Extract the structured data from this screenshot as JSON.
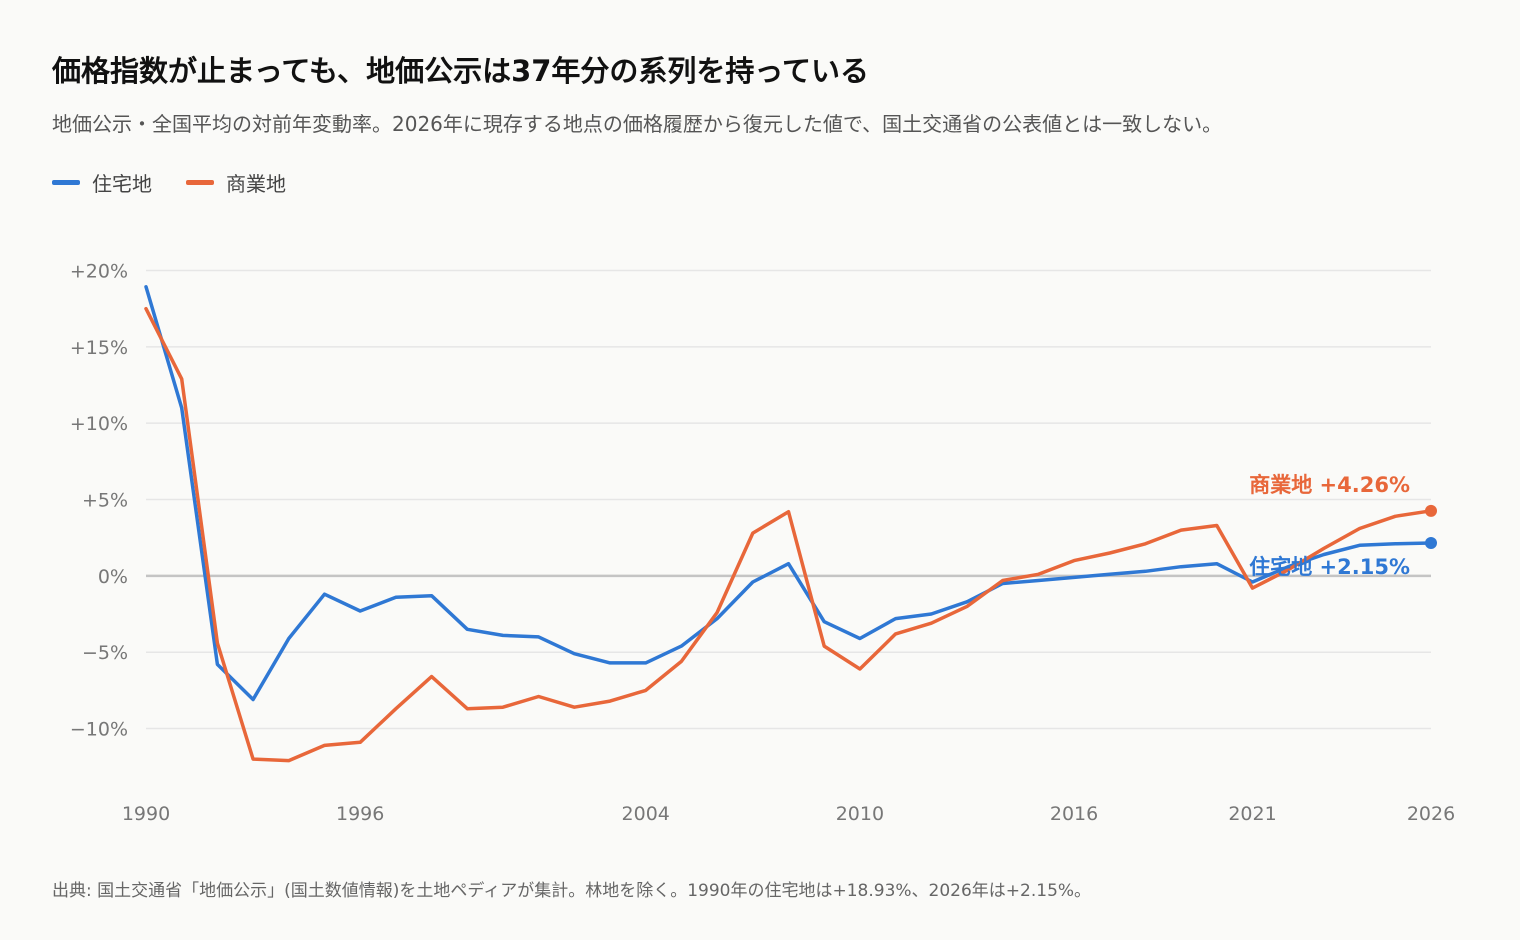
{
  "header": {
    "title": "価格指数が止まっても、地価公示は37年分の系列を持っている",
    "subtitle": "地価公示・全国平均の対前年変動率。2026年に現存する地点の価格履歴から復元した値で、国土交通省の公表値とは一致しない。"
  },
  "legend": [
    {
      "label": "住宅地",
      "color": "#2f78d4"
    },
    {
      "label": "商業地",
      "color": "#e8673a"
    }
  ],
  "source": "出典: 国土交通省「地価公示」(国土数値情報)を土地ペディアが集計。林地を除く。1990年の住宅地は+18.93%、2026年は+2.15%。",
  "chart_data": {
    "type": "line",
    "x": [
      1990,
      1991,
      1992,
      1993,
      1994,
      1995,
      1996,
      1997,
      1998,
      1999,
      2000,
      2001,
      2002,
      2003,
      2004,
      2005,
      2006,
      2007,
      2008,
      2009,
      2010,
      2011,
      2012,
      2013,
      2014,
      2015,
      2016,
      2017,
      2018,
      2019,
      2020,
      2021,
      2022,
      2023,
      2024,
      2025,
      2026
    ],
    "series": [
      {
        "name": "住宅地",
        "color": "#2f78d4",
        "values": [
          18.93,
          11.0,
          -5.8,
          -8.1,
          -4.1,
          -1.2,
          -2.3,
          -1.4,
          -1.3,
          -3.5,
          -3.9,
          -4.0,
          -5.1,
          -5.7,
          -5.7,
          -4.6,
          -2.8,
          -0.4,
          0.8,
          -3.0,
          -4.1,
          -2.8,
          -2.5,
          -1.7,
          -0.5,
          -0.3,
          -0.1,
          0.1,
          0.3,
          0.6,
          0.8,
          -0.4,
          0.6,
          1.4,
          2.0,
          2.1,
          2.15
        ],
        "end_label": "住宅地 +2.15%"
      },
      {
        "name": "商業地",
        "color": "#e8673a",
        "values": [
          17.5,
          12.9,
          -4.4,
          -12.0,
          -12.1,
          -11.1,
          -10.9,
          -8.7,
          -6.6,
          -8.7,
          -8.6,
          -7.9,
          -8.6,
          -8.2,
          -7.5,
          -5.6,
          -2.4,
          2.8,
          4.2,
          -4.6,
          -6.1,
          -3.8,
          -3.1,
          -2.0,
          -0.3,
          0.1,
          1.0,
          1.5,
          2.1,
          3.0,
          3.3,
          -0.8,
          0.4,
          1.8,
          3.1,
          3.9,
          4.26
        ],
        "end_label": "商業地 +4.26%"
      }
    ],
    "x_ticks": [
      {
        "value": 1990,
        "label": "1990"
      },
      {
        "value": 1996,
        "label": "1996"
      },
      {
        "value": 2004,
        "label": "2004"
      },
      {
        "value": 2010,
        "label": "2010"
      },
      {
        "value": 2016,
        "label": "2016"
      },
      {
        "value": 2021,
        "label": "2021"
      },
      {
        "value": 2026,
        "label": "2026"
      }
    ],
    "y_ticks": [
      {
        "value": 20,
        "label": "+20%"
      },
      {
        "value": 15,
        "label": "+15%"
      },
      {
        "value": 10,
        "label": "+10%"
      },
      {
        "value": 5,
        "label": "+5%"
      },
      {
        "value": 0,
        "label": "0%"
      },
      {
        "value": -5,
        "label": "−5%"
      },
      {
        "value": -10,
        "label": "−10%"
      }
    ],
    "xlim": [
      1990,
      2026
    ],
    "ylim": [
      -13.5,
      20
    ],
    "grid": true,
    "legend_position": "top-left"
  }
}
